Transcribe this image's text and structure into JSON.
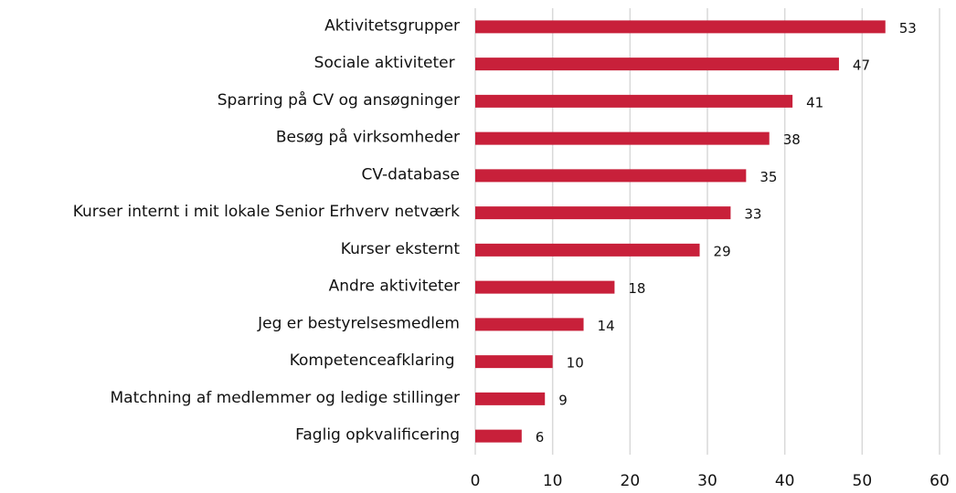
{
  "chart_data": {
    "type": "bar",
    "orientation": "horizontal",
    "categories": [
      "Aktivitetsgrupper",
      "Sociale aktiviteter ",
      "Sparring på CV og ansøgninger",
      "Besøg på virksomheder",
      "CV-database",
      "Kurser internt i mit lokale Senior Erhverv netværk",
      "Kurser eksternt",
      "Andre aktiviteter",
      "Jeg er bestyrelsesmedlem",
      "Kompetenceafklaring ",
      "Matchning af medlemmer og ledige stillinger",
      "Faglig opkvalificering"
    ],
    "values": [
      53,
      47,
      41,
      38,
      35,
      33,
      29,
      18,
      14,
      10,
      9,
      6
    ],
    "color": "#c8203a",
    "xlim": [
      0,
      60
    ],
    "xticks": [
      0,
      10,
      20,
      30,
      40,
      50,
      60
    ],
    "grid": true
  }
}
